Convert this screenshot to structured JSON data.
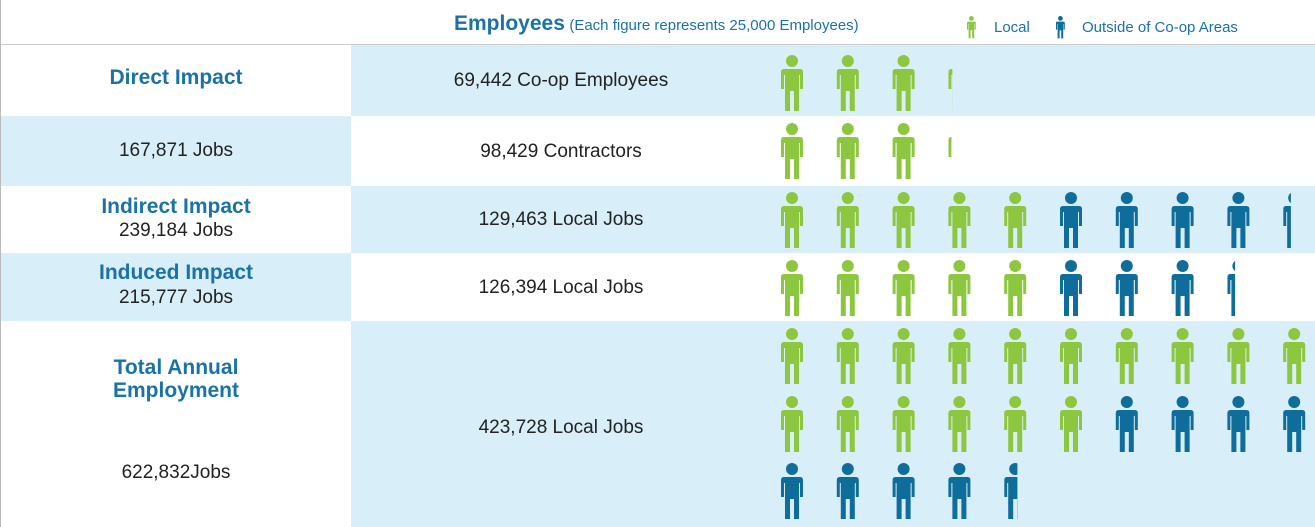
{
  "header": {
    "title": "Employees",
    "note": "(Each figure represents 25,000 Employees)",
    "legend": [
      {
        "label": "Local",
        "color": "#8dc63f"
      },
      {
        "label": "Outside of Co-op Areas",
        "color": "#0f6d9b"
      }
    ]
  },
  "rows": [
    {
      "label": "Direct Impact",
      "detail": "69,442 Co-op Employees"
    },
    {
      "sub": "167,871 Jobs",
      "detail": "98,429 Contractors"
    },
    {
      "label": "Indirect Impact",
      "sub": "239,184 Jobs",
      "detail": "129,463 Local Jobs"
    },
    {
      "label": "Induced Impact",
      "sub": "215,777 Jobs",
      "detail": "126,394 Local Jobs"
    },
    {
      "label": "Total Annual Employment",
      "sub": "622,832Jobs",
      "detail": "423,728 Local Jobs"
    }
  ]
}
